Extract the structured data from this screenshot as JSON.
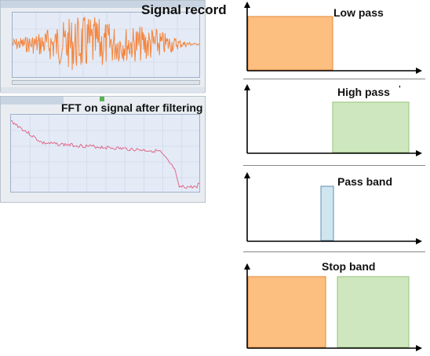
{
  "left": {
    "signal_record_label": "Signal record",
    "fft_label": "FFT on signal after filtering"
  },
  "filters": [
    {
      "title": "Low pass",
      "extra": ""
    },
    {
      "title": "High pass",
      "extra": "’"
    },
    {
      "title": "Pass band",
      "extra": ""
    },
    {
      "title": "Stop band",
      "extra": ""
    }
  ],
  "colors": {
    "orange_fill": "#fdbf80",
    "orange_edge": "#e0883a",
    "green_fill": "#cfe7bf",
    "green_edge": "#95c27a",
    "blue_fill": "#cfe6f1",
    "blue_edge": "#5e8fb0",
    "waveform": "#f5843b",
    "fft_line": "#e06a8a"
  }
}
